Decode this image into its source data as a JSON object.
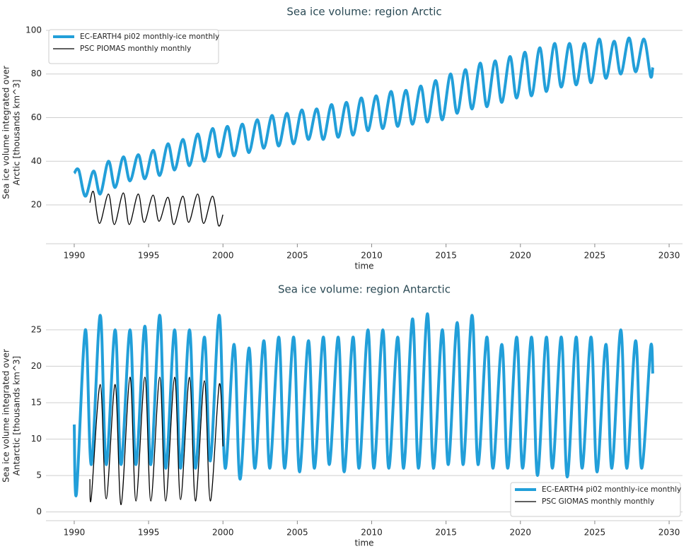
{
  "chart_data": [
    {
      "type": "line",
      "title": "Sea ice volume: region Arctic",
      "xlabel": "time",
      "ylabel": [
        "Sea ice volume integrated over",
        "Arctic [thousands km^3]"
      ],
      "xlim": [
        1988.1,
        2030.9
      ],
      "ylim": [
        2.2,
        104.2
      ],
      "xticks": [
        1990,
        1995,
        2000,
        2005,
        2010,
        2015,
        2020,
        2025,
        2030
      ],
      "yticks": [
        20,
        40,
        60,
        80,
        100
      ],
      "grid": true,
      "legend": "upper left",
      "series": [
        {
          "name": "EC-EARTH4 pi02 monthly-ice monthly",
          "color": "#229fd9",
          "width": 4,
          "x": [
            1990,
            1990.3,
            1990.75,
            1991.3,
            1991.75,
            1992.3,
            1992.75,
            1993.3,
            1993.75,
            1994.3,
            1994.75,
            1995.3,
            1995.75,
            1996.3,
            1996.75,
            1997.3,
            1997.75,
            1998.3,
            1998.75,
            1999.3,
            1999.75,
            2000.3,
            2000.75,
            2001.3,
            2001.75,
            2002.3,
            2002.75,
            2003.3,
            2003.75,
            2004.3,
            2004.75,
            2005.3,
            2005.75,
            2006.3,
            2006.75,
            2007.3,
            2007.75,
            2008.3,
            2008.75,
            2009.3,
            2009.75,
            2010.3,
            2010.75,
            2011.3,
            2011.75,
            2012.3,
            2012.75,
            2013.3,
            2013.75,
            2014.3,
            2014.75,
            2015.3,
            2015.75,
            2016.3,
            2016.75,
            2017.3,
            2017.75,
            2018.3,
            2018.75,
            2019.3,
            2019.75,
            2020.3,
            2020.75,
            2021.3,
            2021.75,
            2022.3,
            2022.75,
            2023.3,
            2023.75,
            2024.3,
            2024.75,
            2025.3,
            2025.75,
            2026.3,
            2026.75,
            2027.3,
            2027.75,
            2028.3,
            2028.75,
            2028.9
          ],
          "values": [
            34.5,
            36,
            24,
            35.5,
            25,
            40,
            28,
            42,
            31,
            43,
            32,
            45,
            33.5,
            48,
            36,
            50,
            38,
            52.5,
            40,
            55,
            42,
            56,
            42.5,
            57,
            44,
            59,
            46,
            61,
            47,
            62,
            48,
            63.5,
            50,
            64,
            50,
            66,
            51,
            67,
            52,
            69,
            54,
            70,
            55,
            72,
            56,
            72.5,
            57,
            74.5,
            58,
            77,
            59,
            80,
            62,
            82,
            64,
            85,
            65,
            86,
            67,
            88,
            69,
            90,
            70,
            92,
            72,
            94,
            74,
            94,
            75,
            94,
            76,
            96,
            78,
            95,
            80,
            96.5,
            81,
            96,
            79,
            83
          ]
        },
        {
          "name": "PSC PIOMAS monthly monthly",
          "color": "#000000",
          "width": 1.3,
          "x": [
            1991.05,
            1991.3,
            1991.7,
            1992.3,
            1992.7,
            1993.3,
            1993.7,
            1994.3,
            1994.7,
            1995.3,
            1995.7,
            1996.3,
            1996.7,
            1997.3,
            1997.7,
            1998.3,
            1998.7,
            1999.3,
            1999.7,
            2000.0
          ],
          "values": [
            21,
            26,
            11.5,
            25,
            11,
            25.5,
            11,
            25,
            12,
            24.5,
            12.5,
            23.5,
            11,
            24,
            12,
            25,
            11.5,
            24,
            10.5,
            15.5
          ]
        }
      ]
    },
    {
      "type": "line",
      "title": "Sea ice volume: region Antarctic",
      "xlabel": "time",
      "ylabel": [
        "Sea ice volume integrated over",
        "Antarctic [thousands km^3]"
      ],
      "xlim": [
        1988.1,
        2030.9
      ],
      "ylim": [
        -1.2,
        27.6
      ],
      "xticks": [
        1990,
        1995,
        2000,
        2005,
        2010,
        2015,
        2020,
        2025,
        2030
      ],
      "yticks": [
        0,
        5,
        10,
        15,
        20,
        25
      ],
      "grid": true,
      "legend": "lower right",
      "series": [
        {
          "name": "EC-EARTH4 pi02 monthly-ice monthly",
          "color": "#229fd9",
          "width": 4,
          "x": [
            1990,
            1990.15,
            1990.75,
            1991.15,
            1991.75,
            1992.15,
            1992.75,
            1993.15,
            1993.75,
            1994.15,
            1994.75,
            1995.15,
            1995.75,
            1996.15,
            1996.75,
            1997.15,
            1997.75,
            1998.15,
            1998.75,
            1999.15,
            1999.75,
            2000.15,
            2000.75,
            2001.15,
            2001.75,
            2002.15,
            2002.75,
            2003.15,
            2003.75,
            2004.15,
            2004.75,
            2005.15,
            2005.75,
            2006.15,
            2006.75,
            2007.15,
            2007.75,
            2008.15,
            2008.75,
            2009.15,
            2009.75,
            2010.15,
            2010.75,
            2011.15,
            2011.75,
            2012.15,
            2012.75,
            2013.15,
            2013.75,
            2014.15,
            2014.75,
            2015.15,
            2015.75,
            2016.15,
            2016.75,
            2017.15,
            2017.75,
            2018.15,
            2018.75,
            2019.15,
            2019.75,
            2020.15,
            2020.75,
            2021.15,
            2021.75,
            2022.15,
            2022.75,
            2023.15,
            2023.75,
            2024.15,
            2024.75,
            2025.15,
            2025.75,
            2026.15,
            2026.75,
            2027.15,
            2027.75,
            2028.15,
            2028.75,
            2028.9
          ],
          "values": [
            12,
            2.5,
            25,
            6.5,
            27,
            6.5,
            25,
            6.5,
            25,
            6.5,
            25.5,
            6.5,
            27,
            6,
            25,
            6,
            25,
            6,
            24,
            7,
            27,
            6,
            23,
            4.5,
            22.5,
            6,
            23.5,
            6,
            24,
            6,
            24,
            5.5,
            23.5,
            6,
            24,
            6.5,
            24,
            5.5,
            24,
            6,
            25,
            6,
            25,
            6,
            24,
            6,
            26.5,
            6,
            27.2,
            6,
            25,
            6.5,
            26,
            6.5,
            27,
            6.5,
            24,
            6,
            23,
            6,
            24,
            6,
            24,
            5,
            24,
            6,
            24,
            4.8,
            24,
            6,
            24,
            5.5,
            23,
            6,
            25,
            6,
            23.5,
            6,
            22.5,
            19
          ]
        },
        {
          "name": "PSC GIOMAS monthly monthly",
          "color": "#000000",
          "width": 1.3,
          "x": [
            1991.05,
            1991.15,
            1991.75,
            1992.15,
            1992.75,
            1993.15,
            1993.75,
            1994.15,
            1994.75,
            1995.15,
            1995.75,
            1996.15,
            1996.75,
            1997.15,
            1997.75,
            1998.15,
            1998.75,
            1999.15,
            1999.75,
            2000.0
          ],
          "values": [
            4.5,
            2,
            17.5,
            1.8,
            17.5,
            1,
            18.5,
            1.5,
            18.5,
            1.5,
            18.5,
            1.5,
            18.5,
            1.7,
            18.5,
            1.5,
            18,
            1.5,
            17.5,
            9
          ]
        }
      ]
    }
  ]
}
